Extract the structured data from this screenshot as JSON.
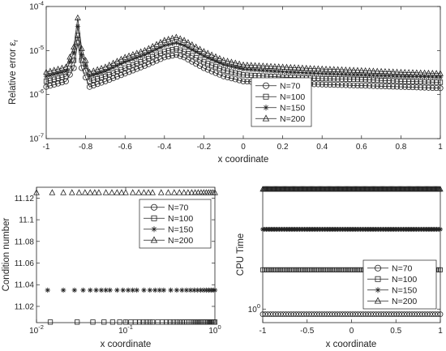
{
  "chart_data": [
    {
      "type": "line",
      "xlabel": "x coordinate",
      "ylabel": "Relative error ε",
      "ylabel_sub": "r",
      "xlim": [
        -1,
        1
      ],
      "ylim": [
        1e-07,
        0.0001
      ],
      "yscale": "log",
      "xticks": [
        "-1",
        "-0.8",
        "-0.6",
        "-0.4",
        "-0.2",
        "0",
        "0.2",
        "0.4",
        "0.6",
        "0.8",
        "1"
      ],
      "yticks": [
        {
          "base": "10",
          "exp": "-7"
        },
        {
          "base": "10",
          "exp": "-6"
        },
        {
          "base": "10",
          "exp": "-5"
        },
        {
          "base": "10",
          "exp": "-4"
        }
      ],
      "legend": "right",
      "series": [
        {
          "name": "N=70",
          "marker": "circle",
          "x": [
            -1,
            -0.9,
            -0.86,
            -0.84,
            -0.82,
            -0.78,
            -0.7,
            -0.6,
            -0.5,
            -0.4,
            -0.34,
            -0.3,
            -0.2,
            -0.1,
            0,
            0.2,
            0.4,
            0.6,
            0.8,
            0.9,
            1
          ],
          "y": [
            1.5e-06,
            2e-06,
            4e-06,
            1.5e-05,
            4e-06,
            1.5e-06,
            2e-06,
            3e-06,
            4.5e-06,
            7e-06,
            8e-06,
            7e-06,
            4e-06,
            2.6e-06,
            2e-06,
            1.8e-06,
            1.7e-06,
            1.6e-06,
            1.5e-06,
            1.45e-06,
            1.4e-06
          ]
        },
        {
          "name": "N=100",
          "marker": "square",
          "x": [
            -1,
            -0.9,
            -0.86,
            -0.84,
            -0.82,
            -0.78,
            -0.7,
            -0.6,
            -0.5,
            -0.4,
            -0.34,
            -0.3,
            -0.2,
            -0.1,
            0,
            0.2,
            0.4,
            0.6,
            0.8,
            0.9,
            1
          ],
          "y": [
            2e-06,
            2.6e-06,
            6e-06,
            2.2e-05,
            6e-06,
            2e-06,
            2.6e-06,
            4e-06,
            6e-06,
            9.5e-06,
            1.1e-05,
            9.5e-06,
            5.5e-06,
            3.6e-06,
            2.8e-06,
            2.5e-06,
            2.3e-06,
            2.2e-06,
            2e-06,
            1.95e-06,
            1.9e-06
          ]
        },
        {
          "name": "N=150",
          "marker": "star",
          "x": [
            -1,
            -0.9,
            -0.86,
            -0.84,
            -0.82,
            -0.78,
            -0.7,
            -0.6,
            -0.5,
            -0.4,
            -0.34,
            -0.3,
            -0.2,
            -0.1,
            0,
            0.2,
            0.4,
            0.6,
            0.8,
            0.9,
            1
          ],
          "y": [
            2.6e-06,
            3.4e-06,
            9e-06,
            3.5e-05,
            8e-06,
            2.6e-06,
            3.4e-06,
            5.5e-06,
            8e-06,
            1.3e-05,
            1.5e-05,
            1.3e-05,
            7.5e-06,
            4.8e-06,
            3.8e-06,
            3.3e-06,
            3e-06,
            2.8e-06,
            2.6e-06,
            2.55e-06,
            2.5e-06
          ]
        },
        {
          "name": "N=200",
          "marker": "triangle",
          "x": [
            -1,
            -0.9,
            -0.86,
            -0.84,
            -0.82,
            -0.78,
            -0.7,
            -0.6,
            -0.5,
            -0.4,
            -0.34,
            -0.3,
            -0.2,
            -0.1,
            0,
            0.2,
            0.4,
            0.6,
            0.8,
            0.9,
            1
          ],
          "y": [
            3.2e-06,
            4.2e-06,
            1.2e-05,
            5.5e-05,
            1.1e-05,
            3.2e-06,
            4.2e-06,
            7e-06,
            1e-05,
            1.7e-05,
            2e-05,
            1.7e-05,
            9.5e-06,
            6e-06,
            4.7e-06,
            4.2e-06,
            3.8e-06,
            3.5e-06,
            3.2e-06,
            3.1e-06,
            3e-06
          ]
        }
      ]
    },
    {
      "type": "scatter",
      "xlabel": "x coordinate",
      "ylabel": "Condition number",
      "xlim": [
        0.01,
        1
      ],
      "xscale": "log",
      "ylim": [
        11.005,
        11.13
      ],
      "xticks": [
        {
          "base": "10",
          "exp": "-2"
        },
        {
          "base": "10",
          "exp": "-1"
        },
        {
          "base": "10",
          "exp": "0"
        }
      ],
      "yticks": [
        "11.02",
        "11.04",
        "11.06",
        "11.08",
        "11.1",
        "11.12"
      ],
      "legend": "top-right",
      "series": [
        {
          "name": "N=70",
          "marker": "circle",
          "x": [],
          "y": []
        },
        {
          "name": "N=100",
          "marker": "square",
          "x": [
            0.0142857,
            0.0285714,
            0.0428571,
            0.0571429,
            0.0714286,
            0.0857143,
            0.1,
            0.114286,
            0.128571,
            0.142857,
            0.157143,
            0.171429,
            0.185714,
            0.2,
            0.228571,
            0.257143,
            0.285714,
            0.314286,
            0.342857,
            0.371429,
            0.4,
            0.428571,
            0.457143,
            0.485714,
            0.514286,
            0.542857,
            0.571429,
            0.6,
            0.628571,
            0.657143,
            0.685714,
            0.714286,
            0.742857,
            0.771429,
            0.8,
            0.828571,
            0.857143,
            0.885714,
            0.914286,
            0.942857,
            0.971429,
            1
          ],
          "y": [
            11.0055,
            11.0055,
            11.0055,
            11.0055,
            11.0055,
            11.0055,
            11.0055,
            11.0055,
            11.0055,
            11.0055,
            11.0055,
            11.0055,
            11.0055,
            11.0055,
            11.0055,
            11.0055,
            11.0055,
            11.0055,
            11.0055,
            11.0055,
            11.0055,
            11.0055,
            11.0055,
            11.0055,
            11.0055,
            11.0055,
            11.0055,
            11.0055,
            11.0055,
            11.0055,
            11.0055,
            11.0055,
            11.0055,
            11.0055,
            11.0055,
            11.0055,
            11.0055,
            11.0055,
            11.0055,
            11.0055,
            11.0055,
            11.0055
          ]
        },
        {
          "name": "N=150",
          "marker": "star",
          "x": [
            0.01333,
            0.02,
            0.02667,
            0.03333,
            0.04,
            0.04667,
            0.05333,
            0.06,
            0.06667,
            0.08,
            0.09333,
            0.10667,
            0.12,
            0.13333,
            0.16,
            0.18667,
            0.21333,
            0.24,
            0.26667,
            0.32,
            0.37333,
            0.42667,
            0.48,
            0.53333,
            0.58667,
            0.64,
            0.69333,
            0.74667,
            0.8,
            0.85333,
            0.90667,
            0.96,
            1
          ],
          "y": [
            11.035,
            11.035,
            11.035,
            11.035,
            11.035,
            11.035,
            11.035,
            11.035,
            11.035,
            11.035,
            11.035,
            11.035,
            11.035,
            11.035,
            11.035,
            11.035,
            11.035,
            11.035,
            11.035,
            11.035,
            11.035,
            11.035,
            11.035,
            11.035,
            11.035,
            11.035,
            11.035,
            11.035,
            11.035,
            11.035,
            11.035,
            11.035,
            11.035
          ]
        },
        {
          "name": "N=200",
          "marker": "triangle",
          "x": [
            0.01,
            0.015,
            0.02,
            0.025,
            0.03,
            0.035,
            0.04,
            0.045,
            0.05,
            0.06,
            0.07,
            0.08,
            0.09,
            0.1,
            0.12,
            0.14,
            0.16,
            0.18,
            0.2,
            0.25,
            0.3,
            0.35,
            0.4,
            0.45,
            0.5,
            0.55,
            0.6,
            0.65,
            0.7,
            0.75,
            0.8,
            0.85,
            0.9,
            0.95,
            1
          ],
          "y": [
            11.125,
            11.125,
            11.125,
            11.125,
            11.125,
            11.125,
            11.125,
            11.125,
            11.125,
            11.125,
            11.125,
            11.125,
            11.125,
            11.125,
            11.125,
            11.125,
            11.125,
            11.125,
            11.125,
            11.125,
            11.125,
            11.125,
            11.125,
            11.125,
            11.125,
            11.125,
            11.125,
            11.125,
            11.125,
            11.125,
            11.125,
            11.125,
            11.125,
            11.125,
            11.125
          ]
        }
      ]
    },
    {
      "type": "scatter",
      "xlabel": "x coordinate",
      "ylabel": "CPU Time",
      "xlim": [
        -1,
        1
      ],
      "ylim": [
        0.85,
        4.3
      ],
      "yscale": "log",
      "xticks": [
        "-1",
        "-0.5",
        "0",
        "0.5",
        "1"
      ],
      "yticks": [
        {
          "base": "10",
          "exp": "0"
        }
      ],
      "legend": "bottom-right",
      "series": [
        {
          "name": "N=70",
          "marker": "circle",
          "x_range": [
            -1,
            1
          ],
          "points": 70,
          "value": 0.94
        },
        {
          "name": "N=100",
          "marker": "square",
          "x_range": [
            -1,
            1
          ],
          "points": 100,
          "value": 1.6
        },
        {
          "name": "N=150",
          "marker": "star",
          "x_range": [
            -1,
            1
          ],
          "points": 150,
          "value": 2.6
        },
        {
          "name": "N=200",
          "marker": "triangle",
          "x_range": [
            -1,
            1
          ],
          "points": 200,
          "value": 4.2
        }
      ]
    }
  ]
}
